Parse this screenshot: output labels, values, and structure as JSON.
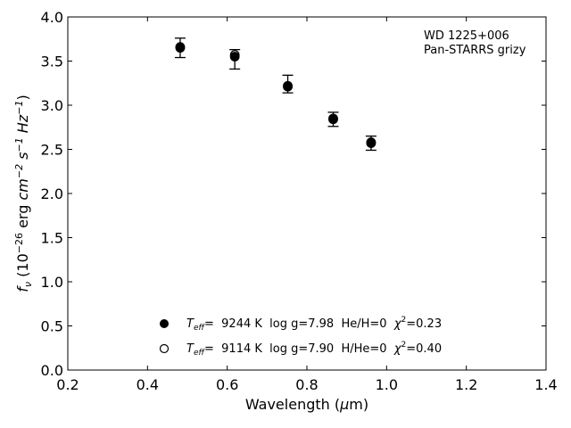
{
  "chart_data": {
    "type": "scatter",
    "annotation": {
      "line1": "WD 1225+006",
      "line2": "Pan-STARRS grizy"
    },
    "xlabel_main": "Wavelength (",
    "xlabel_mu": "μ",
    "xlabel_unit": "m)",
    "ylabel": {
      "f": "f",
      "nu": "ν",
      "open": " (10",
      "exp1": "−26",
      "erg": " erg ",
      "cm": "cm",
      "exp2": "−2",
      "s": " s",
      "exp3": "−1",
      "hz": " Hz",
      "exp4": "−1",
      "close": ")"
    },
    "xlim": [
      0.2,
      1.4
    ],
    "ylim": [
      0.0,
      4.0
    ],
    "x_ticks": [
      0.2,
      0.4,
      0.6,
      0.8,
      1.0,
      1.2,
      1.4
    ],
    "x_tick_labels": [
      "0.2",
      "0.4",
      "0.6",
      "0.8",
      "1.0",
      "1.2",
      "1.4"
    ],
    "y_ticks": [
      0.0,
      0.5,
      1.0,
      1.5,
      2.0,
      2.5,
      3.0,
      3.5,
      4.0
    ],
    "y_tick_labels": [
      "0.0",
      "0.5",
      "1.0",
      "1.5",
      "2.0",
      "2.5",
      "3.0",
      "3.5",
      "4.0"
    ],
    "grid": false,
    "legend_position": "bottom-center",
    "observed": {
      "x": [
        0.482,
        0.619,
        0.752,
        0.866,
        0.961
      ],
      "y": [
        3.65,
        3.52,
        3.24,
        2.84,
        2.57
      ],
      "yerr": [
        0.11,
        0.11,
        0.1,
        0.08,
        0.08
      ]
    },
    "series": [
      {
        "name": "Teff= 9244 K  log g=7.98  He/H=0  χ2=0.23",
        "legend": {
          "T": "T",
          "eff": "eff",
          "rest": "=  9244 K  log g=7.98  He/H=0  ",
          "chi": "χ",
          "chi_exp": "2",
          "chi_val": "=0.23"
        },
        "marker": "filled-circle",
        "x": [
          0.482,
          0.619,
          0.752,
          0.866,
          0.961
        ],
        "y": [
          3.65,
          3.55,
          3.21,
          2.84,
          2.57
        ]
      },
      {
        "name": "Teff= 9114 K  log g=7.90  H/He=0  χ2=0.40",
        "legend": {
          "T": "T",
          "eff": "eff",
          "rest": "=  9114 K  log g=7.90  H/He=0  ",
          "chi": "χ",
          "chi_exp": "2",
          "chi_val": "=0.40"
        },
        "marker": "open-circle",
        "x": [
          0.482,
          0.619,
          0.752,
          0.866,
          0.961
        ],
        "y": [
          3.66,
          3.57,
          3.22,
          2.85,
          2.58
        ]
      }
    ],
    "colors": {
      "marker": "#000000",
      "axis": "#000000"
    }
  }
}
